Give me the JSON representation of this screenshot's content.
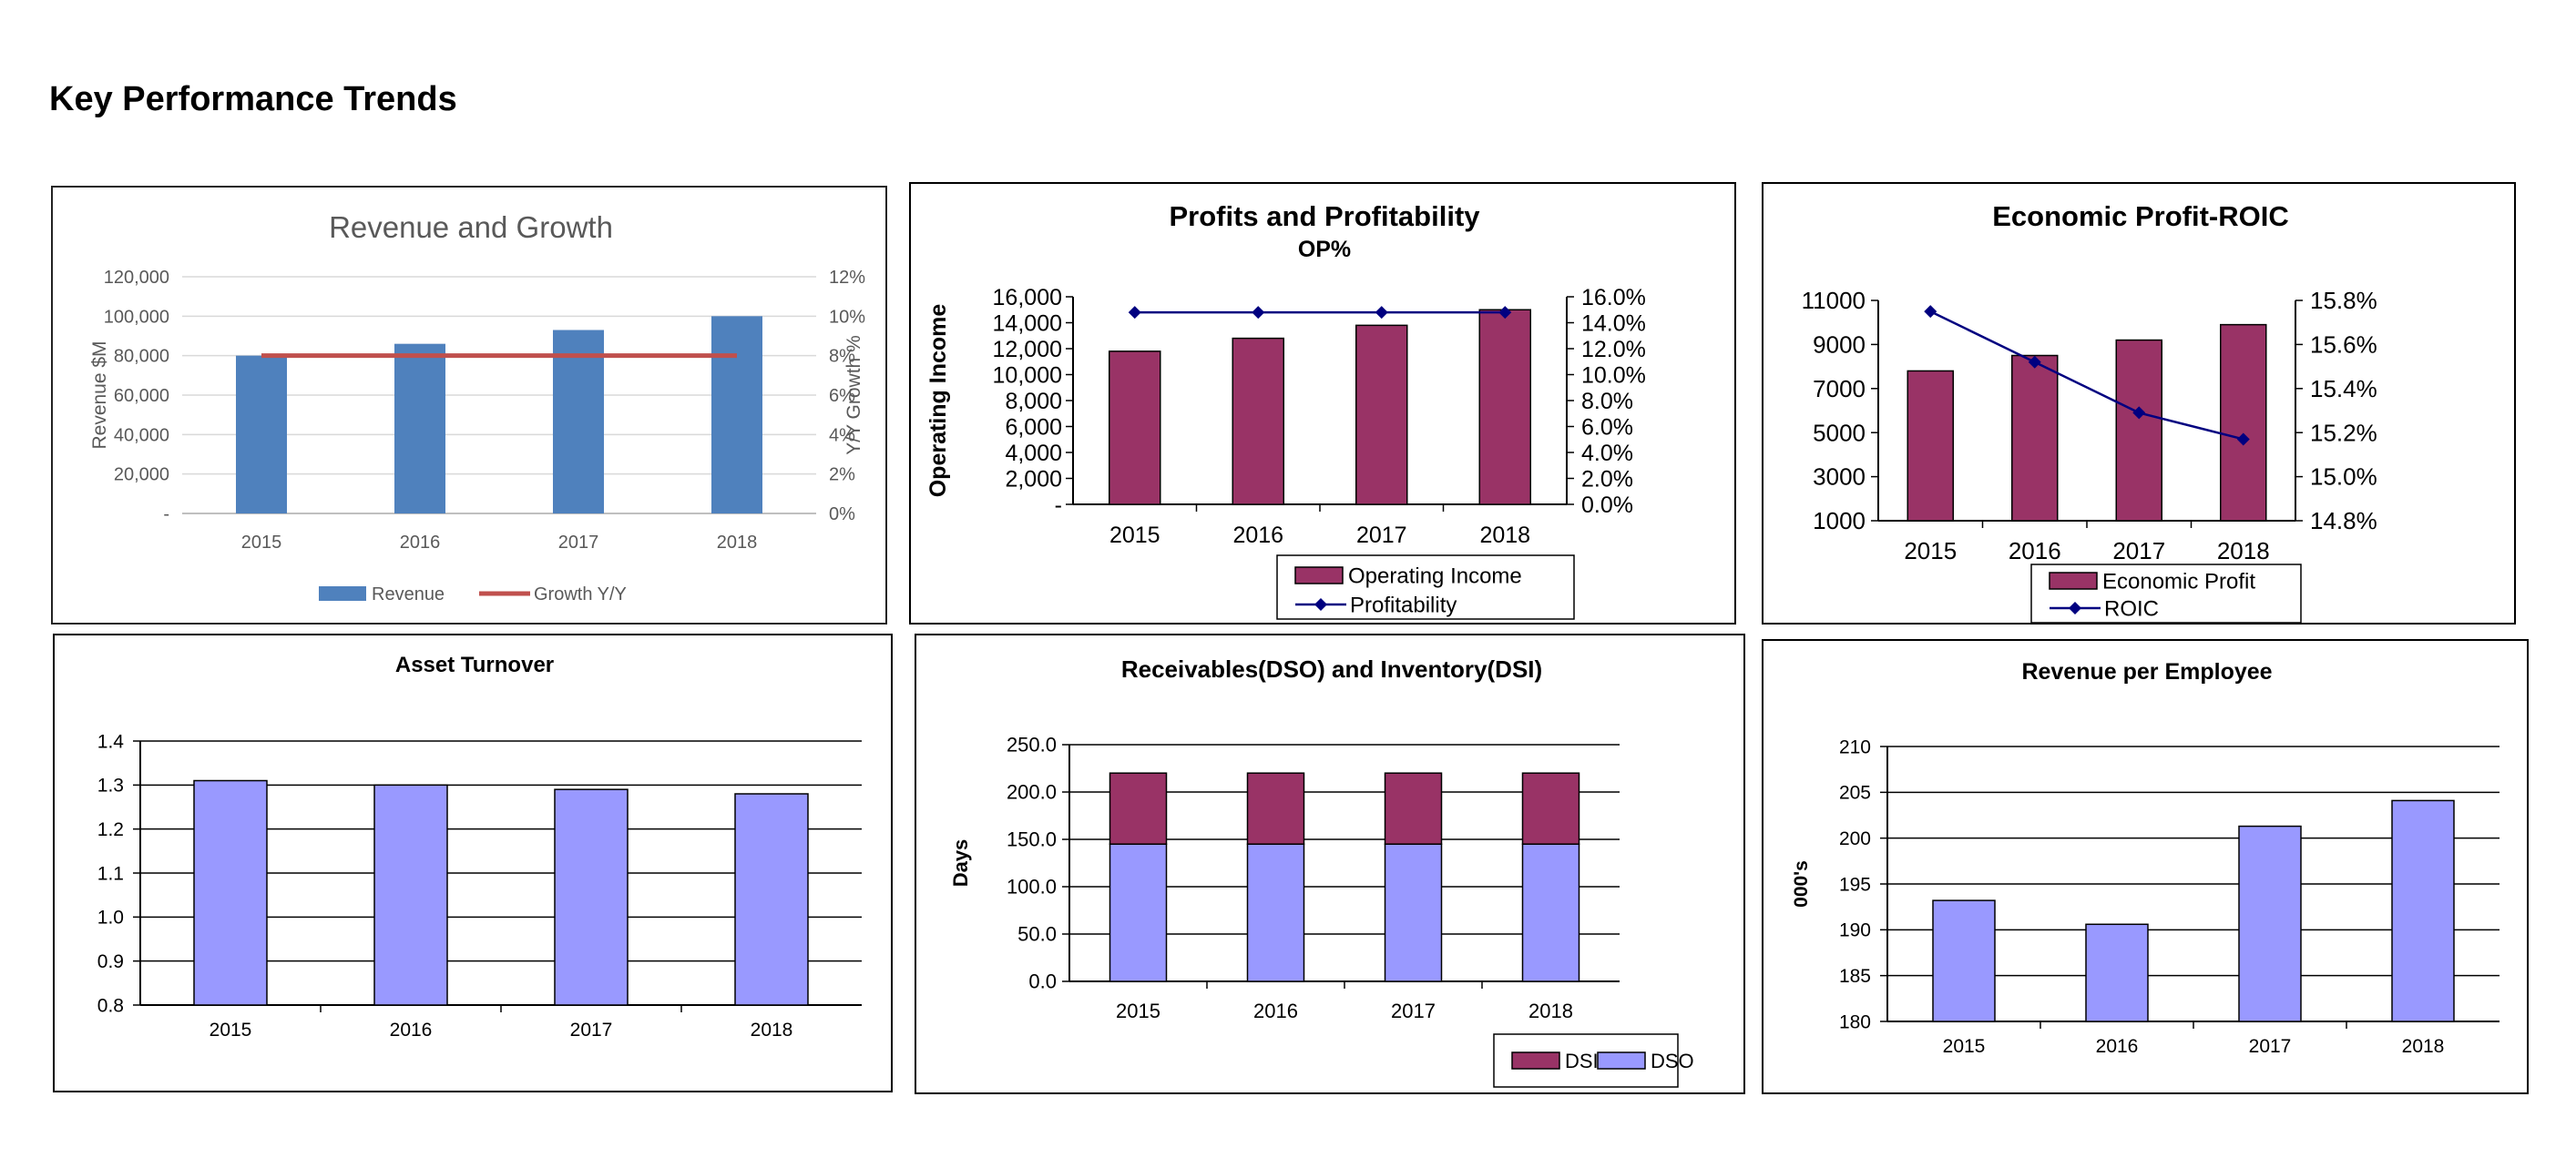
{
  "page": {
    "title": "Key Performance Trends"
  },
  "chart_data": [
    {
      "id": "revenue-growth",
      "type": "bar",
      "title": "Revenue and Growth",
      "ylabel": "Revenue $M",
      "y2label": "Y/Y Growth %",
      "categories": [
        "2015",
        "2016",
        "2017",
        "2018"
      ],
      "series": [
        {
          "name": "Revenue",
          "type": "bar",
          "axis": "left",
          "values": [
            80000,
            86000,
            93000,
            100000
          ],
          "color": "#4F81BD"
        },
        {
          "name": "Growth Y/Y",
          "type": "line",
          "axis": "right",
          "values": [
            8,
            8,
            8,
            8
          ],
          "color": "#C0504D"
        }
      ],
      "ylim": [
        0,
        120000
      ],
      "y2lim": [
        0,
        12
      ],
      "yticks": [
        "-",
        "20,000",
        "40,000",
        "60,000",
        "80,000",
        "100,000",
        "120,000"
      ],
      "y2ticks": [
        "0%",
        "2%",
        "4%",
        "6%",
        "8%",
        "10%",
        "12%"
      ],
      "legend": "bottom",
      "grid": true
    },
    {
      "id": "profits-profitability",
      "type": "bar",
      "title": "Profits and Profitability",
      "subtitle": "OP%",
      "ylabel": "Operating Income",
      "categories": [
        "2015",
        "2016",
        "2017",
        "2018"
      ],
      "series": [
        {
          "name": "Operating Income",
          "type": "bar",
          "axis": "left",
          "values": [
            11800,
            12800,
            13800,
            15000
          ],
          "color": "#993366"
        },
        {
          "name": "Profitability",
          "type": "line",
          "axis": "right",
          "values": [
            14.8,
            14.8,
            14.8,
            14.8
          ],
          "color": "#000080"
        }
      ],
      "ylim": [
        0,
        16000
      ],
      "y2lim": [
        0,
        16
      ],
      "yticks": [
        "-",
        "2,000",
        "4,000",
        "6,000",
        "8,000",
        "10,000",
        "12,000",
        "14,000",
        "16,000"
      ],
      "y2ticks": [
        "0.0%",
        "2.0%",
        "4.0%",
        "6.0%",
        "8.0%",
        "10.0%",
        "12.0%",
        "14.0%",
        "16.0%"
      ],
      "legend": "bottom",
      "grid": false
    },
    {
      "id": "economic-profit-roic",
      "type": "bar",
      "title": "Economic Profit-ROIC",
      "categories": [
        "2015",
        "2016",
        "2017",
        "2018"
      ],
      "series": [
        {
          "name": "Economic Profit",
          "type": "bar",
          "axis": "left",
          "values": [
            7800,
            8500,
            9200,
            9900
          ],
          "color": "#993366"
        },
        {
          "name": "ROIC",
          "type": "line",
          "axis": "right",
          "values": [
            15.75,
            15.52,
            15.29,
            15.17
          ],
          "color": "#000080"
        }
      ],
      "ylim": [
        1000,
        11000
      ],
      "y2lim": [
        14.8,
        15.8
      ],
      "yticks": [
        "1000",
        "3000",
        "5000",
        "7000",
        "9000",
        "11000"
      ],
      "y2ticks": [
        "14.8%",
        "15.0%",
        "15.2%",
        "15.4%",
        "15.6%",
        "15.8%"
      ],
      "legend": "bottom",
      "grid": false
    },
    {
      "id": "asset-turnover",
      "type": "bar",
      "title": "Asset Turnover",
      "categories": [
        "2015",
        "2016",
        "2017",
        "2018"
      ],
      "series": [
        {
          "name": "Asset Turnover",
          "type": "bar",
          "axis": "left",
          "values": [
            1.31,
            1.3,
            1.29,
            1.28
          ],
          "color": "#9999FF"
        }
      ],
      "ylim": [
        0.8,
        1.4
      ],
      "yticks": [
        "0.8",
        "0.9",
        "1.0",
        "1.1",
        "1.2",
        "1.3",
        "1.4"
      ],
      "legend": "none",
      "grid": true
    },
    {
      "id": "receivables-inventory",
      "type": "bar",
      "stacked": true,
      "title": "Receivables(DSO) and Inventory(DSI)",
      "ylabel": "Days",
      "categories": [
        "2015",
        "2016",
        "2017",
        "2018"
      ],
      "series": [
        {
          "name": "DSO",
          "type": "bar",
          "values": [
            145,
            145,
            145,
            145
          ],
          "color": "#9999FF"
        },
        {
          "name": "DSI",
          "type": "bar",
          "values": [
            75,
            75,
            75,
            75
          ],
          "color": "#993366"
        }
      ],
      "ylim": [
        0,
        250
      ],
      "yticks": [
        "0.0",
        "50.0",
        "100.0",
        "150.0",
        "200.0",
        "250.0"
      ],
      "legend_order": [
        "DSI",
        "DSO"
      ],
      "legend": "bottom-right",
      "grid": true
    },
    {
      "id": "revenue-per-employee",
      "type": "bar",
      "title": "Revenue per Employee",
      "ylabel": "000's",
      "categories": [
        "2015",
        "2016",
        "2017",
        "2018"
      ],
      "series": [
        {
          "name": "Revenue per Employee",
          "type": "bar",
          "axis": "left",
          "values": [
            193.2,
            190.6,
            201.3,
            204.1
          ],
          "color": "#9999FF"
        }
      ],
      "ylim": [
        180,
        210
      ],
      "yticks": [
        "180",
        "185",
        "190",
        "195",
        "200",
        "205",
        "210"
      ],
      "legend": "none",
      "grid": true
    }
  ]
}
